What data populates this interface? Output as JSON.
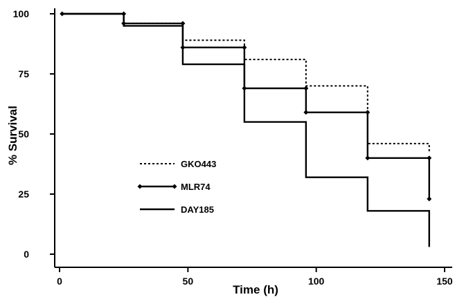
{
  "chart_data": {
    "type": "line",
    "xlabel": "Time (h)",
    "ylabel": "% Survival",
    "xlim": [
      -2,
      150
    ],
    "ylim": [
      0,
      100
    ],
    "x_ticks": [
      0,
      50,
      100,
      150
    ],
    "y_ticks": [
      0,
      25,
      50,
      75,
      100
    ],
    "grid": false,
    "legend_position": "middle-left",
    "series": [
      {
        "name": "GKO443",
        "style": "dotted",
        "color": "#000000",
        "marker": "none",
        "steps": [
          [
            1,
            100
          ],
          [
            25,
            96
          ],
          [
            48,
            89
          ],
          [
            72,
            81
          ],
          [
            96,
            70
          ],
          [
            120,
            46
          ],
          [
            144,
            42
          ]
        ],
        "end_x": 144
      },
      {
        "name": "MLR74",
        "style": "solid-diamond",
        "color": "#000000",
        "marker": "diamond",
        "steps": [
          [
            1,
            100
          ],
          [
            25,
            96
          ],
          [
            48,
            86
          ],
          [
            72,
            69
          ],
          [
            96,
            59
          ],
          [
            120,
            40
          ],
          [
            144,
            23
          ]
        ],
        "end_x": 144
      },
      {
        "name": "DAY185",
        "style": "solid",
        "color": "#000000",
        "marker": "none",
        "steps": [
          [
            1,
            100
          ],
          [
            25,
            95
          ],
          [
            48,
            79
          ],
          [
            72,
            55
          ],
          [
            96,
            32
          ],
          [
            120,
            18
          ],
          [
            144,
            3
          ]
        ],
        "end_x": 144
      }
    ]
  }
}
